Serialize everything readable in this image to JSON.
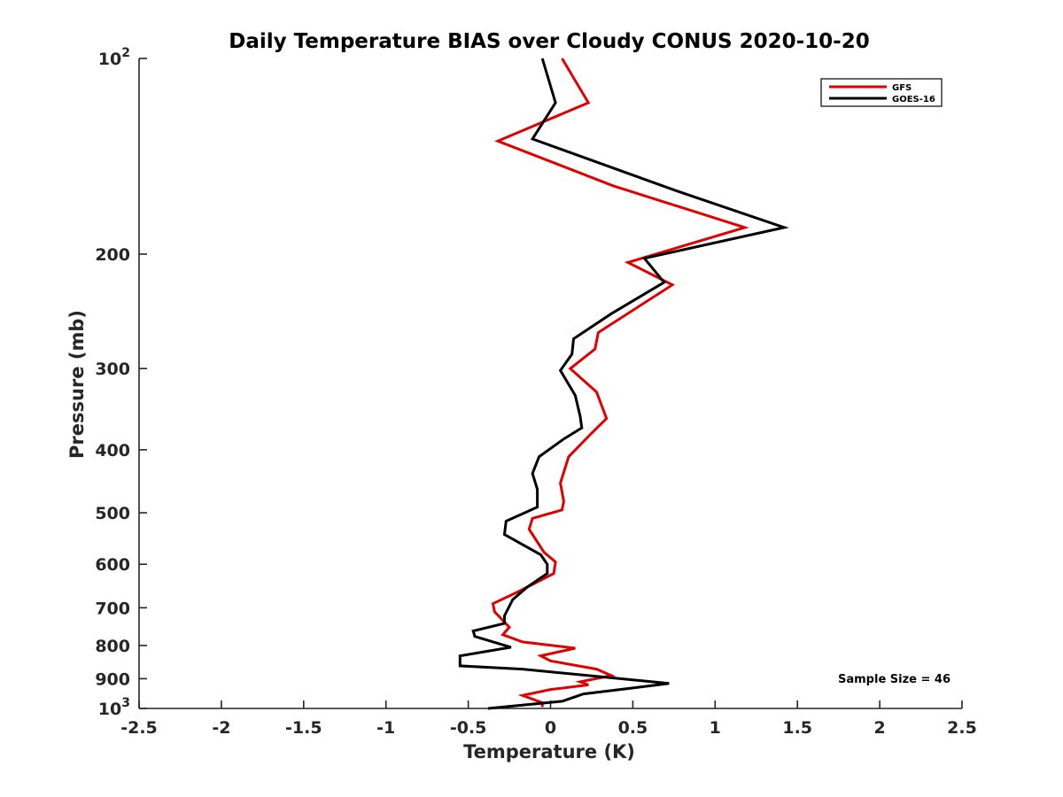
{
  "chart_data": {
    "type": "line",
    "title": "Daily Temperature BIAS over Cloudy CONUS 2020-10-20",
    "xlabel": "Temperature (K)",
    "ylabel": "Pressure (mb)",
    "xlim": [
      -2.5,
      2.5
    ],
    "ylim": [
      100,
      1000
    ],
    "yscale": "log",
    "yreverse": true,
    "grid": false,
    "legend_position": "top-right",
    "x_ticks": [
      {
        "value": -2.5,
        "label": "-2.5"
      },
      {
        "value": -2,
        "label": "-2"
      },
      {
        "value": -1.5,
        "label": "-1.5"
      },
      {
        "value": -1,
        "label": "-1"
      },
      {
        "value": -0.5,
        "label": "-0.5"
      },
      {
        "value": 0,
        "label": "0"
      },
      {
        "value": 0.5,
        "label": "0.5"
      },
      {
        "value": 1,
        "label": "1"
      },
      {
        "value": 1.5,
        "label": "1.5"
      },
      {
        "value": 2,
        "label": "2"
      },
      {
        "value": 2.5,
        "label": "2.5"
      }
    ],
    "y_ticks": [
      {
        "value": 100,
        "base": "10",
        "exp": "2"
      },
      {
        "value": 200,
        "label": "200"
      },
      {
        "value": 300,
        "label": "300"
      },
      {
        "value": 400,
        "label": "400"
      },
      {
        "value": 500,
        "label": "500"
      },
      {
        "value": 600,
        "label": "600"
      },
      {
        "value": 700,
        "label": "700"
      },
      {
        "value": 800,
        "label": "800"
      },
      {
        "value": 900,
        "label": "900"
      },
      {
        "value": 1000,
        "base": "10",
        "exp": "3"
      }
    ],
    "series": [
      {
        "name": "GFS",
        "color": "#e00000",
        "points": [
          [
            0.07,
            100
          ],
          [
            0.23,
            117
          ],
          [
            -0.32,
            134
          ],
          [
            0.38,
            157
          ],
          [
            1.18,
            182
          ],
          [
            0.47,
            206
          ],
          [
            0.74,
            223
          ],
          [
            0.29,
            264
          ],
          [
            0.27,
            280
          ],
          [
            0.12,
            300
          ],
          [
            0.28,
            326
          ],
          [
            0.34,
            358
          ],
          [
            0.25,
            377
          ],
          [
            0.11,
            410
          ],
          [
            0.06,
            450
          ],
          [
            0.08,
            480
          ],
          [
            0.07,
            495
          ],
          [
            -0.11,
            510
          ],
          [
            -0.13,
            530
          ],
          [
            -0.04,
            575
          ],
          [
            0.03,
            595
          ],
          [
            0.02,
            620
          ],
          [
            -0.2,
            662
          ],
          [
            -0.35,
            690
          ],
          [
            -0.34,
            710
          ],
          [
            -0.25,
            750
          ],
          [
            -0.29,
            770
          ],
          [
            -0.17,
            790
          ],
          [
            0.15,
            808
          ],
          [
            -0.06,
            830
          ],
          [
            0.0,
            845
          ],
          [
            0.28,
            870
          ],
          [
            0.37,
            890
          ],
          [
            0.18,
            910
          ],
          [
            0.23,
            920
          ],
          [
            0.0,
            935
          ],
          [
            -0.17,
            955
          ],
          [
            -0.05,
            980
          ],
          [
            -0.05,
            995
          ]
        ]
      },
      {
        "name": "GOES-16",
        "color": "#000000",
        "points": [
          [
            -0.05,
            100
          ],
          [
            0.03,
            117
          ],
          [
            -0.11,
            133
          ],
          [
            0.77,
            160
          ],
          [
            1.42,
            182
          ],
          [
            0.57,
            203
          ],
          [
            0.69,
            221
          ],
          [
            0.37,
            247
          ],
          [
            0.14,
            270
          ],
          [
            0.13,
            285
          ],
          [
            0.06,
            302
          ],
          [
            0.15,
            330
          ],
          [
            0.18,
            355
          ],
          [
            0.19,
            370
          ],
          [
            0.08,
            385
          ],
          [
            -0.07,
            410
          ],
          [
            -0.11,
            435
          ],
          [
            -0.08,
            460
          ],
          [
            -0.08,
            490
          ],
          [
            -0.27,
            515
          ],
          [
            -0.28,
            540
          ],
          [
            -0.06,
            580
          ],
          [
            -0.02,
            600
          ],
          [
            -0.02,
            620
          ],
          [
            -0.14,
            650
          ],
          [
            -0.23,
            680
          ],
          [
            -0.28,
            720
          ],
          [
            -0.28,
            740
          ],
          [
            -0.47,
            760
          ],
          [
            -0.46,
            775
          ],
          [
            -0.24,
            805
          ],
          [
            -0.55,
            830
          ],
          [
            -0.55,
            860
          ],
          [
            -0.17,
            870
          ],
          [
            0.72,
            915
          ],
          [
            0.5,
            930
          ],
          [
            0.2,
            950
          ],
          [
            0.07,
            975
          ],
          [
            -0.38,
            1000
          ]
        ]
      }
    ],
    "annotations": [
      {
        "text": "Sample Size = 46"
      }
    ]
  }
}
